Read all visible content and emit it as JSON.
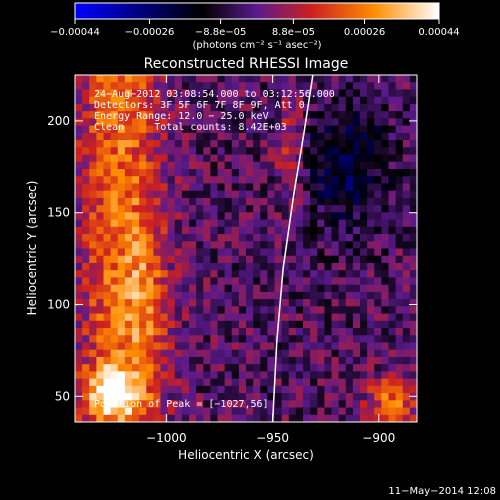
{
  "chart_data": {
    "type": "heatmap",
    "title": "Reconstructed RHESSI Image",
    "xlabel": "Heliocentric X (arcsec)",
    "ylabel": "Heliocentric Y (arcsec)",
    "xlim": [
      -1043,
      -882
    ],
    "ylim": [
      36,
      225
    ],
    "x_ticks": [
      -1000,
      -950,
      -900
    ],
    "x_tick_labels": [
      "−1000",
      "−950",
      "−900"
    ],
    "y_ticks": [
      50,
      100,
      150,
      200
    ],
    "y_tick_labels": [
      "50",
      "100",
      "150",
      "200"
    ],
    "colorbar": {
      "range": [
        -0.00044,
        0.00044
      ],
      "ticks": [
        -0.00044,
        -0.00026,
        -8.8e-05,
        8.8e-05,
        0.00026,
        0.00044
      ],
      "tick_labels": [
        "−0.00044",
        "−0.00026",
        "−8.8e−05",
        "8.8e−05",
        "0.00026",
        "0.00044"
      ],
      "units": "(photons cm⁻² s⁻¹ asec⁻²)",
      "colormap": [
        "#0000ff",
        "#000000",
        "#5a1a8c",
        "#cc2020",
        "#ff8c00",
        "#ffffff"
      ]
    },
    "annotations": [
      "24−Aug−2012 03:08:54.000 to 03:12:56.000",
      "Detectors: 3F 5F 6F 7F 8F 9F, Att 0",
      "Energy Range: 12.0 − 25.0 keV",
      "Clean     Total counts: 8.42E+03",
      "Position of Peak = [−1027,56]"
    ],
    "limb": [
      [
        -950,
        36
      ],
      [
        -948,
        80
      ],
      [
        -945,
        120
      ],
      [
        -940,
        160
      ],
      [
        -935,
        195
      ],
      [
        -931,
        225
      ]
    ],
    "peak": [
      -1027,
      56
    ]
  },
  "footer": {
    "date": "11−May−2014 12:08"
  }
}
